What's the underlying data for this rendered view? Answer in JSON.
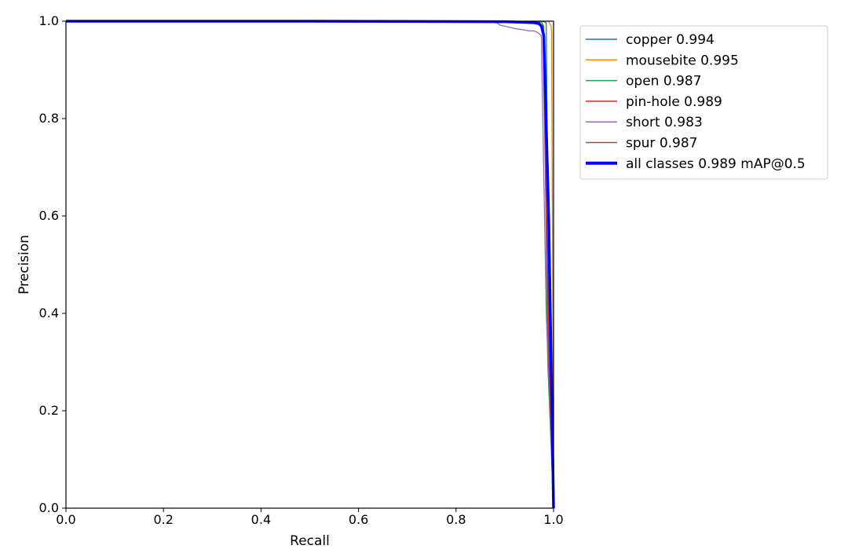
{
  "chart_data": {
    "type": "line",
    "title": "",
    "xlabel": "Recall",
    "ylabel": "Precision",
    "xlim": [
      0,
      1
    ],
    "ylim": [
      0,
      1
    ],
    "xticks": [
      "0.0",
      "0.2",
      "0.4",
      "0.6",
      "0.8",
      "1.0"
    ],
    "yticks": [
      "0.0",
      "0.2",
      "0.4",
      "0.6",
      "0.8",
      "1.0"
    ],
    "grid": false,
    "legend_position": "outside-right-top",
    "series": [
      {
        "name": "copper 0.994",
        "color": "#1f77b4",
        "x": [
          0,
          0.5,
          0.9,
          0.98,
          0.985,
          0.99,
          1.0
        ],
        "y": [
          1.0,
          1.0,
          1.0,
          0.999,
          0.997,
          0.4,
          0.0
        ]
      },
      {
        "name": "mousebite 0.995",
        "color": "#ff7f0e",
        "x": [
          0,
          0.5,
          0.95,
          0.99,
          0.992,
          0.995,
          0.996,
          0.998,
          1.0
        ],
        "y": [
          1.0,
          1.0,
          1.0,
          1.0,
          0.995,
          0.99,
          0.98,
          0.5,
          0.0
        ]
      },
      {
        "name": "open 0.987",
        "color": "#2ca02c",
        "x": [
          0,
          0.5,
          0.9,
          0.975,
          0.98,
          0.988,
          1.0
        ],
        "y": [
          1.0,
          1.0,
          1.0,
          0.998,
          0.99,
          0.3,
          0.0
        ]
      },
      {
        "name": "pin-hole 0.989",
        "color": "#d62728",
        "x": [
          0,
          0.5,
          0.9,
          0.97,
          0.976,
          0.98,
          0.99,
          1.0
        ],
        "y": [
          1.0,
          1.0,
          0.999,
          0.995,
          0.99,
          0.98,
          0.35,
          0.0
        ]
      },
      {
        "name": "short 0.983",
        "color": "#9467bd",
        "x": [
          0,
          0.5,
          0.87,
          0.885,
          0.89,
          0.9,
          0.92,
          0.94,
          0.95,
          0.96,
          0.965,
          0.97,
          0.975,
          0.985,
          1.0
        ],
        "y": [
          1.0,
          1.0,
          0.999,
          0.996,
          0.992,
          0.99,
          0.985,
          0.982,
          0.98,
          0.98,
          0.978,
          0.975,
          0.97,
          0.4,
          0.0
        ]
      },
      {
        "name": "spur 0.987",
        "color": "#8c564b",
        "x": [
          0,
          0.5,
          0.9,
          0.97,
          0.978,
          0.99,
          1.0
        ],
        "y": [
          1.0,
          1.0,
          1.0,
          0.998,
          0.99,
          0.3,
          0.0
        ]
      },
      {
        "name": "all classes 0.989 mAP@0.5",
        "color": "#0000ff",
        "x": [
          0,
          0.5,
          0.9,
          0.96,
          0.97,
          0.975,
          0.98,
          0.99,
          0.995,
          1.0
        ],
        "y": [
          1.0,
          1.0,
          0.999,
          0.997,
          0.995,
          0.99,
          0.97,
          0.6,
          0.3,
          0.0
        ]
      }
    ]
  }
}
